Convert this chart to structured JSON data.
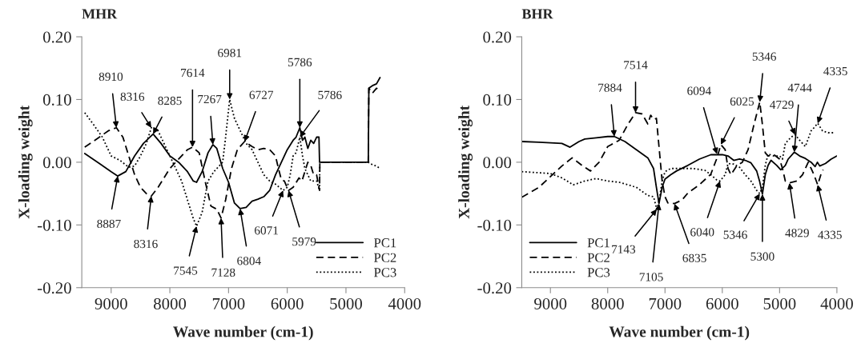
{
  "chart_data": [
    {
      "type": "line",
      "title": "MHR",
      "xlabel": "Wave number (cm-1)",
      "ylabel": "X-loading weight",
      "xlim": [
        9500,
        4000
      ],
      "xticks": [
        9000,
        8000,
        7000,
        6000,
        5000,
        4000
      ],
      "ylim": [
        -0.2,
        0.2
      ],
      "yticks": [
        {
          "value": -0.2,
          "label": "-0.20"
        },
        {
          "value": -0.1,
          "label": "-0.10"
        },
        {
          "value": 0,
          "label": "0.00"
        },
        {
          "value": 0.1,
          "label": "0.10"
        },
        {
          "value": 0.2,
          "label": "0.20"
        }
      ],
      "grid": false,
      "legend": "bottom right",
      "series": [
        {
          "name": "PC1",
          "color": "#000000",
          "line_style": "solid",
          "x": [
            9450,
            9200,
            9000,
            8887,
            8750,
            8600,
            8450,
            8285,
            8150,
            8000,
            7850,
            7700,
            7600,
            7545,
            7450,
            7350,
            7267,
            7200,
            7100,
            7000,
            6900,
            6804,
            6700,
            6600,
            6500,
            6400,
            6300,
            6200,
            6100,
            6000,
            5900,
            5850,
            5786,
            5740,
            5700,
            5650,
            5600,
            5550,
            5500,
            5460,
            5450,
            4620,
            4610,
            4550,
            4480,
            4420
          ],
          "values": [
            0.014,
            -0.002,
            -0.015,
            -0.022,
            -0.015,
            0.01,
            0.03,
            0.045,
            0.03,
            0.01,
            0.0,
            -0.015,
            -0.03,
            -0.032,
            -0.015,
            0.015,
            0.028,
            0.022,
            -0.01,
            -0.032,
            -0.065,
            -0.074,
            -0.072,
            -0.062,
            -0.059,
            -0.055,
            -0.045,
            -0.02,
            0.0,
            0.02,
            0.035,
            0.04,
            0.055,
            0.035,
            0.04,
            0.022,
            0.035,
            0.03,
            0.04,
            0.04,
            0.0,
            0.0,
            0.118,
            0.122,
            0.125,
            0.135
          ]
        },
        {
          "name": "PC2",
          "color": "#000000",
          "line_style": "dashed",
          "x": [
            9450,
            9200,
            9050,
            8910,
            8800,
            8700,
            8600,
            8500,
            8400,
            8316,
            8200,
            8000,
            7850,
            7700,
            7614,
            7500,
            7400,
            7300,
            7200,
            7128,
            7050,
            6950,
            6850,
            6727,
            6600,
            6500,
            6400,
            6300,
            6200,
            6150,
            6100,
            6050,
            5979,
            5900,
            5800,
            5750,
            5700,
            5650,
            5600,
            5550,
            5500,
            5450,
            5445,
            4620,
            4610,
            4550,
            4480,
            4420
          ],
          "values": [
            0.024,
            0.04,
            0.05,
            0.055,
            0.04,
            0.01,
            -0.02,
            -0.04,
            -0.05,
            -0.054,
            -0.04,
            -0.01,
            0.005,
            0.02,
            0.024,
            0.015,
            -0.03,
            -0.07,
            -0.075,
            -0.089,
            -0.06,
            -0.01,
            0.02,
            0.033,
            0.025,
            0.02,
            0.022,
            0.02,
            0.01,
            -0.01,
            -0.028,
            -0.03,
            -0.045,
            -0.04,
            -0.025,
            -0.03,
            -0.015,
            0.0,
            -0.005,
            -0.02,
            -0.02,
            -0.045,
            0.0,
            0.0,
            0.118,
            0.11,
            0.118,
            0.115
          ]
        },
        {
          "name": "PC3",
          "color": "#000000",
          "line_style": "dotted",
          "x": [
            9450,
            9300,
            9150,
            9000,
            8850,
            8700,
            8600,
            8500,
            8400,
            8316,
            8200,
            8100,
            8000,
            7900,
            7800,
            7700,
            7600,
            7545,
            7450,
            7350,
            7250,
            7150,
            7100,
            7050,
            6981,
            6900,
            6800,
            6700,
            6600,
            6500,
            6400,
            6300,
            6200,
            6071,
            6000,
            5950,
            5900,
            5850,
            5786,
            5740,
            5700,
            5650,
            5600,
            5500,
            5450,
            5445,
            4620,
            4550,
            4480,
            4420
          ],
          "values": [
            0.079,
            0.06,
            0.04,
            0.01,
            0.003,
            -0.008,
            -0.006,
            0.01,
            0.03,
            0.055,
            0.05,
            0.03,
            0.01,
            -0.01,
            -0.03,
            -0.06,
            -0.09,
            -0.102,
            -0.08,
            -0.03,
            -0.015,
            -0.005,
            0.0,
            0.04,
            0.1,
            0.07,
            0.05,
            0.03,
            0.02,
            0.0,
            -0.02,
            -0.03,
            -0.035,
            -0.045,
            -0.04,
            -0.02,
            0.01,
            0.015,
            0.04,
            0.01,
            -0.01,
            -0.02,
            -0.03,
            -0.03,
            -0.045,
            0.0,
            0.0,
            -0.004,
            -0.006,
            -0.01
          ]
        }
      ],
      "annotations": [
        {
          "text": "8910",
          "x": 8910,
          "y": 0.055
        },
        {
          "text": "8316",
          "x": 8316,
          "y": 0.055
        },
        {
          "text": "8285",
          "x": 8285,
          "y": 0.045
        },
        {
          "text": "7614",
          "x": 7614,
          "y": 0.024
        },
        {
          "text": "7267",
          "x": 7267,
          "y": 0.028
        },
        {
          "text": "6981",
          "x": 6981,
          "y": 0.1
        },
        {
          "text": "6727",
          "x": 6727,
          "y": 0.033
        },
        {
          "text": "5786",
          "x": 5786,
          "y": 0.04
        },
        {
          "text": "5786",
          "x": 5786,
          "y": 0.055
        },
        {
          "text": "8887",
          "x": 8887,
          "y": -0.022
        },
        {
          "text": "8316",
          "x": 8316,
          "y": -0.054
        },
        {
          "text": "7545",
          "x": 7545,
          "y": -0.102
        },
        {
          "text": "7128",
          "x": 7128,
          "y": -0.089
        },
        {
          "text": "6804",
          "x": 6804,
          "y": -0.074
        },
        {
          "text": "6071",
          "x": 6071,
          "y": -0.045
        },
        {
          "text": "5979",
          "x": 5979,
          "y": -0.045
        }
      ]
    },
    {
      "type": "line",
      "title": "BHR",
      "xlabel": "Wave number (cm-1)",
      "ylabel": "X-loading weight",
      "xlim": [
        9500,
        4000
      ],
      "xticks": [
        9000,
        8000,
        7000,
        6000,
        5000,
        4000
      ],
      "ylim": [
        -0.2,
        0.2
      ],
      "yticks": [
        {
          "value": -0.2,
          "label": "-0.20"
        },
        {
          "value": -0.1,
          "label": "-0.10"
        },
        {
          "value": 0,
          "label": "0.00"
        },
        {
          "value": 0.1,
          "label": "0.10"
        },
        {
          "value": 0.2,
          "label": "0.20"
        }
      ],
      "grid": false,
      "legend": "bottom left",
      "series": [
        {
          "name": "PC1",
          "color": "#000000",
          "line_style": "solid",
          "x": [
            9500,
            9200,
            9000,
            8800,
            8658,
            8500,
            8400,
            8200,
            8000,
            7884,
            7700,
            7500,
            7300,
            7200,
            7150,
            7105,
            7050,
            7000,
            6900,
            6800,
            6600,
            6400,
            6200,
            6000,
            5900,
            5800,
            5700,
            5600,
            5500,
            5400,
            5350,
            5300,
            5250,
            5200,
            5150,
            5050,
            4980,
            4900,
            4850,
            4744,
            4650,
            4550,
            4450,
            4380,
            4340,
            4300,
            4200,
            4100,
            4000
          ],
          "values": [
            0.033,
            0.032,
            0.031,
            0.03,
            0.024,
            0.033,
            0.037,
            0.039,
            0.041,
            0.041,
            0.033,
            0.02,
            0.007,
            -0.01,
            -0.04,
            -0.066,
            -0.04,
            -0.027,
            -0.02,
            -0.014,
            -0.005,
            0.005,
            0.012,
            0.012,
            0.01,
            0.003,
            0.005,
            0.003,
            -0.001,
            -0.014,
            -0.03,
            -0.051,
            -0.02,
            -0.005,
            0.003,
            -0.005,
            -0.012,
            -0.005,
            0.005,
            0.016,
            0.01,
            0.006,
            0.0,
            -0.007,
            0.0,
            -0.006,
            -0.002,
            0.005,
            0.01
          ]
        },
        {
          "name": "PC2",
          "color": "#000000",
          "line_style": "dashed",
          "x": [
            9500,
            9200,
            9000,
            8800,
            8620,
            8450,
            8300,
            8150,
            8000,
            7800,
            7650,
            7514,
            7400,
            7300,
            7250,
            7200,
            7150,
            7100,
            7050,
            7000,
            6950,
            6835,
            6700,
            6600,
            6400,
            6200,
            6100,
            6025,
            5950,
            5900,
            5850,
            5750,
            5650,
            5550,
            5450,
            5346,
            5300,
            5250,
            5200,
            5100,
            5000,
            4950,
            4900,
            4829,
            4700,
            4600,
            4500,
            4450,
            4400,
            4335,
            4280,
            4240
          ],
          "values": [
            -0.056,
            -0.04,
            -0.023,
            -0.006,
            0.007,
            -0.005,
            -0.014,
            0.0,
            0.025,
            0.035,
            0.06,
            0.079,
            0.077,
            0.061,
            0.075,
            0.068,
            0.07,
            0.02,
            -0.03,
            -0.055,
            -0.065,
            -0.066,
            -0.06,
            -0.049,
            -0.036,
            -0.019,
            0.005,
            0.028,
            0.02,
            -0.01,
            -0.02,
            -0.006,
            0.0,
            0.02,
            0.059,
            0.096,
            0.06,
            0.015,
            0.01,
            0.012,
            0.005,
            -0.01,
            -0.03,
            -0.033,
            -0.03,
            -0.02,
            0.0,
            -0.01,
            -0.02,
            -0.036,
            -0.02,
            -0.012
          ]
        },
        {
          "name": "PC3",
          "color": "#000000",
          "line_style": "dotted",
          "x": [
            9500,
            9000,
            8800,
            8600,
            8400,
            8200,
            8000,
            7800,
            7500,
            7300,
            7200,
            7143,
            7100,
            7050,
            7000,
            6900,
            6700,
            6500,
            6300,
            6200,
            6100,
            6040,
            5950,
            5900,
            5800,
            5700,
            5600,
            5500,
            5400,
            5346,
            5300,
            5250,
            5200,
            5100,
            5000,
            4950,
            4900,
            4800,
            4729,
            4650,
            4550,
            4450,
            4400,
            4335,
            4250,
            4150,
            4050
          ],
          "values": [
            -0.015,
            -0.018,
            -0.025,
            -0.036,
            -0.03,
            -0.026,
            -0.03,
            -0.032,
            -0.04,
            -0.053,
            -0.055,
            -0.075,
            -0.06,
            -0.03,
            -0.015,
            -0.01,
            -0.01,
            -0.01,
            -0.013,
            -0.02,
            -0.028,
            -0.03,
            -0.02,
            -0.002,
            -0.003,
            -0.008,
            -0.02,
            -0.03,
            -0.045,
            -0.05,
            -0.04,
            -0.005,
            0.013,
            0.01,
            0.01,
            0.005,
            0.03,
            0.04,
            0.044,
            0.035,
            0.025,
            0.05,
            0.055,
            0.062,
            0.05,
            0.047,
            0.047
          ]
        }
      ],
      "annotations": [
        {
          "text": "7884",
          "x": 7884,
          "y": 0.041
        },
        {
          "text": "7514",
          "x": 7514,
          "y": 0.079
        },
        {
          "text": "6094",
          "x": 6094,
          "y": 0.013
        },
        {
          "text": "6025",
          "x": 6025,
          "y": 0.028
        },
        {
          "text": "5346",
          "x": 5346,
          "y": 0.096
        },
        {
          "text": "4729",
          "x": 4729,
          "y": 0.044
        },
        {
          "text": "4744",
          "x": 4744,
          "y": 0.016
        },
        {
          "text": "4335",
          "x": 4335,
          "y": 0.062
        },
        {
          "text": "7143",
          "x": 7143,
          "y": -0.075
        },
        {
          "text": "7105",
          "x": 7105,
          "y": -0.066
        },
        {
          "text": "6835",
          "x": 6835,
          "y": -0.066
        },
        {
          "text": "6040",
          "x": 6040,
          "y": -0.03
        },
        {
          "text": "5346",
          "x": 5346,
          "y": -0.05
        },
        {
          "text": "5300",
          "x": 5300,
          "y": -0.051
        },
        {
          "text": "4829",
          "x": 4829,
          "y": -0.033
        },
        {
          "text": "4335",
          "x": 4335,
          "y": -0.036
        }
      ]
    }
  ]
}
